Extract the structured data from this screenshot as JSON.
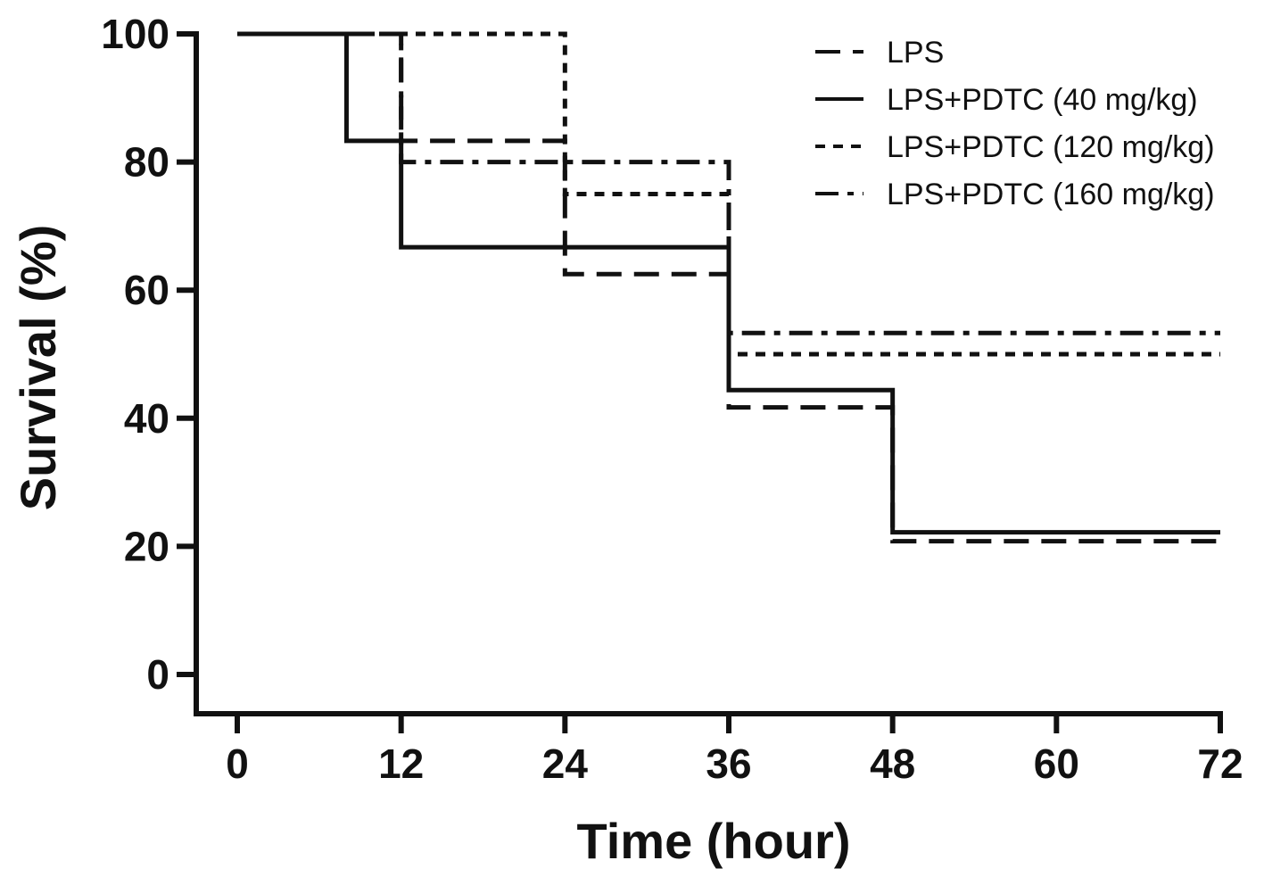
{
  "chart_data": {
    "type": "line",
    "subtype": "kaplan-meier-step",
    "title": "",
    "xlabel": "Time (hour)",
    "ylabel": "Survival (%)",
    "xlim": [
      0,
      72
    ],
    "ylim": [
      0,
      100
    ],
    "xticks": [
      "0",
      "12",
      "24",
      "36",
      "48",
      "60",
      "72"
    ],
    "yticks": [
      "0",
      "20",
      "40",
      "60",
      "80",
      "100"
    ],
    "grid": false,
    "legend_position": "top-right",
    "series": [
      {
        "name": "LPS",
        "line_style": "long-dash",
        "x": [
          0,
          12,
          24,
          36,
          48,
          72
        ],
        "y": [
          100,
          83.3,
          62.5,
          41.7,
          20.8,
          20.8
        ]
      },
      {
        "name": "LPS+PDTC (40 mg/kg)",
        "line_style": "solid",
        "x": [
          0,
          8,
          12,
          36,
          48,
          72
        ],
        "y": [
          100,
          83.3,
          66.7,
          44.4,
          22.2,
          22.2
        ]
      },
      {
        "name": "LPS+PDTC (120 mg/kg)",
        "line_style": "short-dash",
        "x": [
          0,
          24,
          36,
          72
        ],
        "y": [
          100,
          75,
          50,
          50
        ]
      },
      {
        "name": "LPS+PDTC (160 mg/kg)",
        "line_style": "dash-dot",
        "x": [
          0,
          12,
          36,
          72
        ],
        "y": [
          100,
          80,
          53.3,
          53.3
        ]
      }
    ]
  }
}
